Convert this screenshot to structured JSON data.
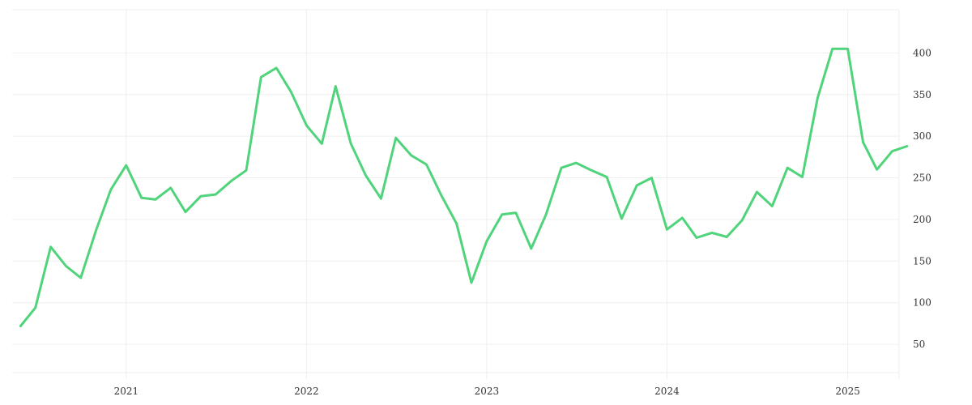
{
  "chart_data": {
    "type": "line",
    "grid": true,
    "legend": "none",
    "colors": {
      "line": "#4fd37b",
      "grid": "#efefef",
      "text": "#333333"
    },
    "xlim": [
      "2020-05-15",
      "2025-04-15"
    ],
    "ylim": [
      16,
      452
    ],
    "x_ticks": [
      {
        "label": "2021",
        "date": "2021-01-01"
      },
      {
        "label": "2022",
        "date": "2022-01-01"
      },
      {
        "label": "2023",
        "date": "2023-01-01"
      },
      {
        "label": "2024",
        "date": "2024-01-01"
      },
      {
        "label": "2025",
        "date": "2025-01-01"
      }
    ],
    "y_ticks": [
      50,
      100,
      150,
      200,
      250,
      300,
      350,
      400
    ],
    "series": [
      {
        "x": [
          "2020-06-01",
          "2020-07-01",
          "2020-08-01",
          "2020-09-01",
          "2020-10-01",
          "2020-11-01",
          "2020-12-01",
          "2021-01-01",
          "2021-02-01",
          "2021-03-01",
          "2021-04-01",
          "2021-05-01",
          "2021-06-01",
          "2021-07-01",
          "2021-08-01",
          "2021-09-01",
          "2021-10-01",
          "2021-11-01",
          "2021-12-01",
          "2022-01-01",
          "2022-02-01",
          "2022-03-01",
          "2022-04-01",
          "2022-05-01",
          "2022-06-01",
          "2022-07-01",
          "2022-08-01",
          "2022-09-01",
          "2022-10-01",
          "2022-11-01",
          "2022-12-01",
          "2023-01-01",
          "2023-02-01",
          "2023-03-01",
          "2023-04-01",
          "2023-05-01",
          "2023-06-01",
          "2023-07-01",
          "2023-08-01",
          "2023-09-01",
          "2023-10-01",
          "2023-11-01",
          "2023-12-01",
          "2024-01-01",
          "2024-02-01",
          "2024-03-01",
          "2024-04-01",
          "2024-05-01",
          "2024-06-01",
          "2024-07-01",
          "2024-08-01",
          "2024-09-01",
          "2024-10-01",
          "2024-11-01",
          "2024-12-01",
          "2025-01-01",
          "2025-02-01",
          "2025-03-01",
          "2025-04-01",
          "2025-05-01"
        ],
        "values": [
          72,
          94,
          167,
          144,
          130,
          187,
          236,
          265,
          226,
          224,
          238,
          209,
          228,
          230,
          246,
          259,
          371,
          382,
          353,
          313,
          291,
          360,
          291,
          253,
          225,
          298,
          277,
          266,
          229,
          195,
          124,
          174,
          206,
          208,
          165,
          206,
          262,
          268,
          259,
          251,
          201,
          241,
          250,
          188,
          202,
          178,
          184,
          179,
          199,
          233,
          216,
          262,
          251,
          346,
          405,
          405,
          293,
          260,
          282,
          288
        ]
      }
    ]
  }
}
